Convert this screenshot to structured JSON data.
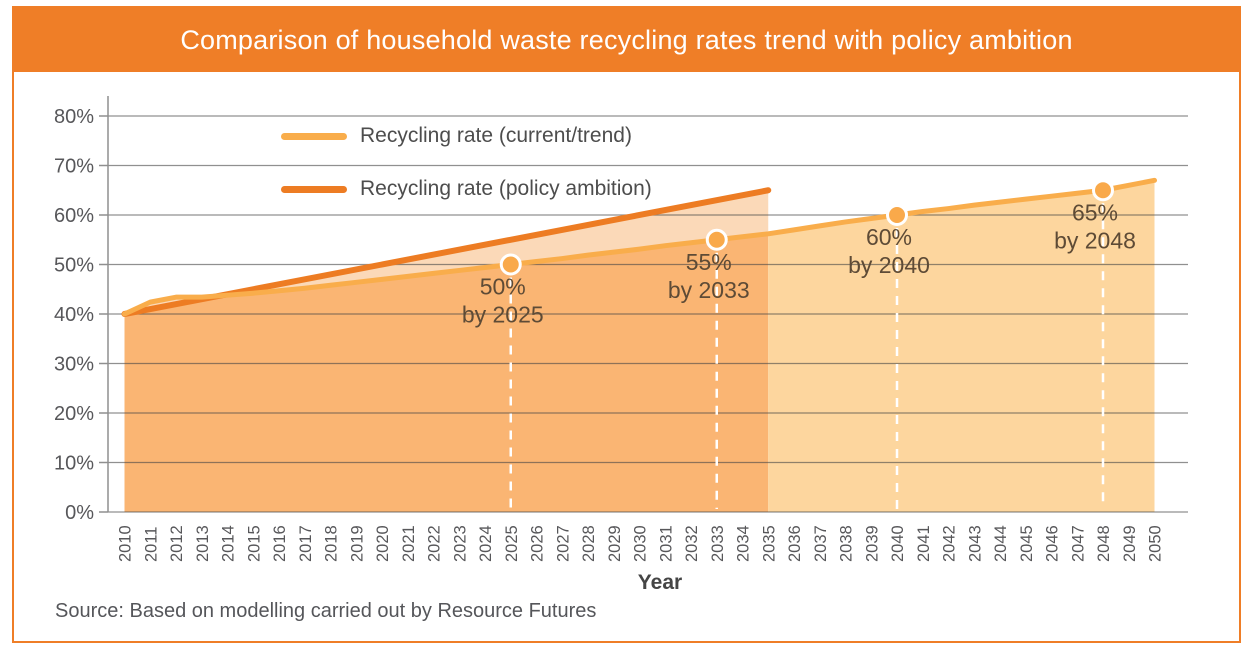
{
  "source_note": {
    "text": "Source: Based on modelling carried out by Resource Futures"
  },
  "colors": {
    "banner_orange": "#EF7E27",
    "card_border_orange": "#EF7E27",
    "trend_line": "#F9AD4B",
    "ambition_line": "#ED7C23",
    "fill_under_lines_ambition_period": "#FAB573",
    "fill_between_lines": "#FBD9B8",
    "fill_trend_after_ambition": "#FDD69E",
    "marker_fill": "#F9A94A",
    "marker_ring": "#FFFFFF",
    "dashed_target_line": "#FFFFFF",
    "gridline": "rgba(70,70,70,0.6)",
    "axis_line": "#8F8F8F",
    "tick_label": "#57575A",
    "annotation_text": "#5E4B36"
  },
  "chart_data": {
    "type": "line",
    "title": "Comparison of household waste recycling rates trend with policy ambition",
    "xlabel": "Year",
    "ylabel": "",
    "ylim": [
      0,
      80
    ],
    "grid": true,
    "legend_position": "top-left inside plot",
    "y_ticks": [
      "0%",
      "10%",
      "20%",
      "30%",
      "40%",
      "50%",
      "60%",
      "70%",
      "80%"
    ],
    "x_ticks": [
      "2010",
      "2011",
      "2012",
      "2013",
      "2014",
      "2015",
      "2016",
      "2017",
      "2018",
      "2019",
      "2020",
      "2021",
      "2022",
      "2023",
      "2024",
      "2025",
      "2026",
      "2027",
      "2028",
      "2029",
      "2030",
      "2031",
      "2032",
      "2033",
      "2034",
      "2035",
      "2036",
      "2037",
      "2038",
      "2039",
      "2040",
      "2041",
      "2042",
      "2043",
      "2044",
      "2045",
      "2046",
      "2047",
      "2048",
      "2049",
      "2050"
    ],
    "area_split_year": 2035,
    "series": [
      {
        "name": "Recycling rate (current/trend)",
        "color": "#F9AD4B",
        "years": [
          2010,
          2011,
          2012,
          2013,
          2014,
          2015,
          2016,
          2017,
          2018,
          2019,
          2020,
          2021,
          2022,
          2023,
          2024,
          2025,
          2026,
          2027,
          2028,
          2029,
          2030,
          2031,
          2032,
          2033,
          2034,
          2035,
          2036,
          2037,
          2038,
          2039,
          2040,
          2041,
          2042,
          2043,
          2044,
          2045,
          2046,
          2047,
          2048,
          2049,
          2050
        ],
        "values": [
          40,
          42.4,
          43.4,
          43.4,
          43.8,
          44.2,
          44.7,
          45.2,
          45.8,
          46.4,
          47,
          47.6,
          48.2,
          48.8,
          49.4,
          50,
          50.6,
          51.2,
          51.9,
          52.5,
          53.1,
          53.8,
          54.4,
          55,
          55.6,
          56.2,
          57,
          57.8,
          58.6,
          59.3,
          60,
          60.7,
          61.3,
          62,
          62.6,
          63.2,
          63.8,
          64.4,
          65,
          66,
          67
        ]
      },
      {
        "name": "Recycling rate (policy ambition)",
        "color": "#ED7C23",
        "years": [
          2010,
          2035
        ],
        "values": [
          40,
          65
        ]
      }
    ],
    "annotations": [
      {
        "value_label": "50%",
        "year_label": "by 2025",
        "year": 2025,
        "value": 50
      },
      {
        "value_label": "55%",
        "year_label": "by 2033",
        "year": 2033,
        "value": 55
      },
      {
        "value_label": "60%",
        "year_label": "by 2040",
        "year": 2040,
        "value": 60
      },
      {
        "value_label": "65%",
        "year_label": "by 2048",
        "year": 2048,
        "value": 65
      }
    ]
  }
}
